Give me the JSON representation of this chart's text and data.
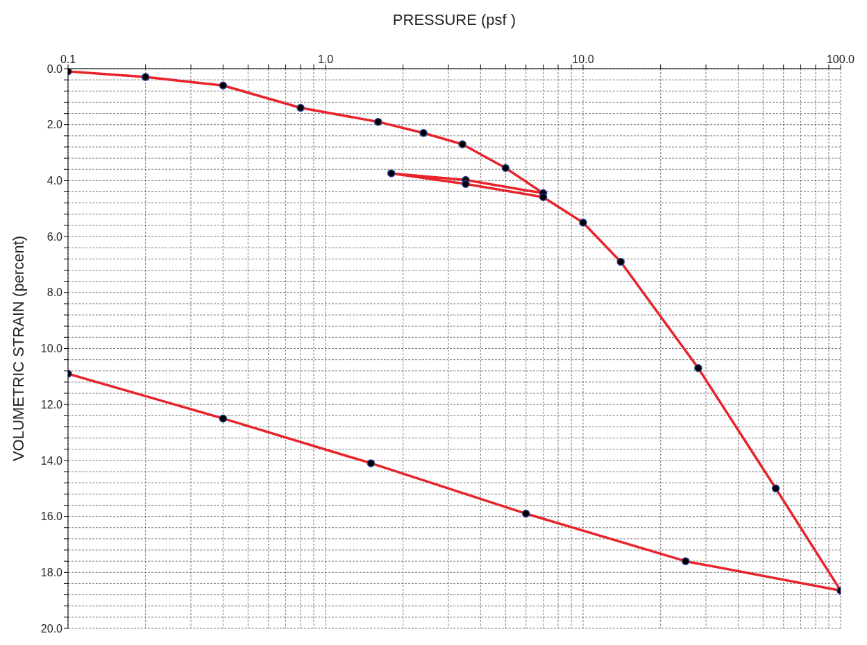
{
  "chart_data": {
    "type": "line",
    "xlabel": "PRESSURE (psf )",
    "ylabel": "VOLUMETRIC STRAIN (percent)",
    "log": "x",
    "grid": true,
    "marker": "circle",
    "line_style": "solid",
    "xlim": [
      0.1,
      100
    ],
    "ylim": [
      20,
      0
    ],
    "xticks": [
      {
        "value": 0.1,
        "label": "0.1"
      },
      {
        "value": 0.2,
        "label": null
      },
      {
        "value": 0.3,
        "label": null
      },
      {
        "value": 0.4,
        "label": null
      },
      {
        "value": 0.5,
        "label": null
      },
      {
        "value": 0.6,
        "label": null
      },
      {
        "value": 0.7,
        "label": null
      },
      {
        "value": 0.8,
        "label": null
      },
      {
        "value": 0.9,
        "label": null
      },
      {
        "value": 1,
        "label": "1.0"
      },
      {
        "value": 2,
        "label": null
      },
      {
        "value": 3,
        "label": null
      },
      {
        "value": 4,
        "label": null
      },
      {
        "value": 5,
        "label": null
      },
      {
        "value": 6,
        "label": null
      },
      {
        "value": 7,
        "label": null
      },
      {
        "value": 8,
        "label": null
      },
      {
        "value": 9,
        "label": null
      },
      {
        "value": 10,
        "label": "10.0"
      },
      {
        "value": 20,
        "label": null
      },
      {
        "value": 30,
        "label": null
      },
      {
        "value": 40,
        "label": null
      },
      {
        "value": 50,
        "label": null
      },
      {
        "value": 60,
        "label": null
      },
      {
        "value": 70,
        "label": null
      },
      {
        "value": 80,
        "label": null
      },
      {
        "value": 90,
        "label": null
      },
      {
        "value": 100,
        "label": "100.0"
      }
    ],
    "yticks": [
      {
        "value": 0,
        "label": "0.0"
      },
      {
        "value": 0.4,
        "label": null
      },
      {
        "value": 0.8,
        "label": null
      },
      {
        "value": 1.2,
        "label": null
      },
      {
        "value": 1.6,
        "label": null
      },
      {
        "value": 2,
        "label": "2.0"
      },
      {
        "value": 2.4,
        "label": null
      },
      {
        "value": 2.8,
        "label": null
      },
      {
        "value": 3.2,
        "label": null
      },
      {
        "value": 3.6,
        "label": null
      },
      {
        "value": 4,
        "label": "4.0"
      },
      {
        "value": 4.4,
        "label": null
      },
      {
        "value": 4.8,
        "label": null
      },
      {
        "value": 5.2,
        "label": null
      },
      {
        "value": 5.6,
        "label": null
      },
      {
        "value": 6,
        "label": "6.0"
      },
      {
        "value": 6.4,
        "label": null
      },
      {
        "value": 6.8,
        "label": null
      },
      {
        "value": 7.2,
        "label": null
      },
      {
        "value": 7.6,
        "label": null
      },
      {
        "value": 8,
        "label": "8.0"
      },
      {
        "value": 8.4,
        "label": null
      },
      {
        "value": 8.8,
        "label": null
      },
      {
        "value": 9.2,
        "label": null
      },
      {
        "value": 9.6,
        "label": null
      },
      {
        "value": 10,
        "label": "10.0"
      },
      {
        "value": 10.4,
        "label": null
      },
      {
        "value": 10.8,
        "label": null
      },
      {
        "value": 11.2,
        "label": null
      },
      {
        "value": 11.6,
        "label": null
      },
      {
        "value": 12,
        "label": "12.0"
      },
      {
        "value": 12.4,
        "label": null
      },
      {
        "value": 12.8,
        "label": null
      },
      {
        "value": 13.2,
        "label": null
      },
      {
        "value": 13.6,
        "label": null
      },
      {
        "value": 14,
        "label": "14.0"
      },
      {
        "value": 14.4,
        "label": null
      },
      {
        "value": 14.8,
        "label": null
      },
      {
        "value": 15.2,
        "label": null
      },
      {
        "value": 15.6,
        "label": null
      },
      {
        "value": 16,
        "label": "16.0"
      },
      {
        "value": 16.4,
        "label": null
      },
      {
        "value": 16.8,
        "label": null
      },
      {
        "value": 17.2,
        "label": null
      },
      {
        "value": 17.6,
        "label": null
      },
      {
        "value": 18,
        "label": "18.0"
      },
      {
        "value": 18.4,
        "label": null
      },
      {
        "value": 18.8,
        "label": null
      },
      {
        "value": 19.2,
        "label": null
      },
      {
        "value": 19.6,
        "label": null
      },
      {
        "value": 20,
        "label": "20.0"
      }
    ],
    "series": [
      {
        "color": "#e8232a",
        "x": [
          0.1,
          0.2,
          0.4,
          0.8,
          1.6,
          2.4,
          3.4,
          5,
          7,
          3.5,
          1.8,
          3.5,
          7,
          10,
          14,
          28,
          56,
          100,
          25,
          6,
          1.5,
          0.4,
          0.1
        ],
        "values": [
          0.1,
          0.3,
          0.6,
          1.4,
          1.9,
          2.3,
          2.7,
          3.55,
          4.45,
          3.98,
          3.74,
          4.12,
          4.59,
          5.5,
          6.9,
          10.7,
          15.0,
          18.65,
          17.6,
          15.9,
          14.1,
          12.5,
          10.9
        ]
      }
    ]
  }
}
